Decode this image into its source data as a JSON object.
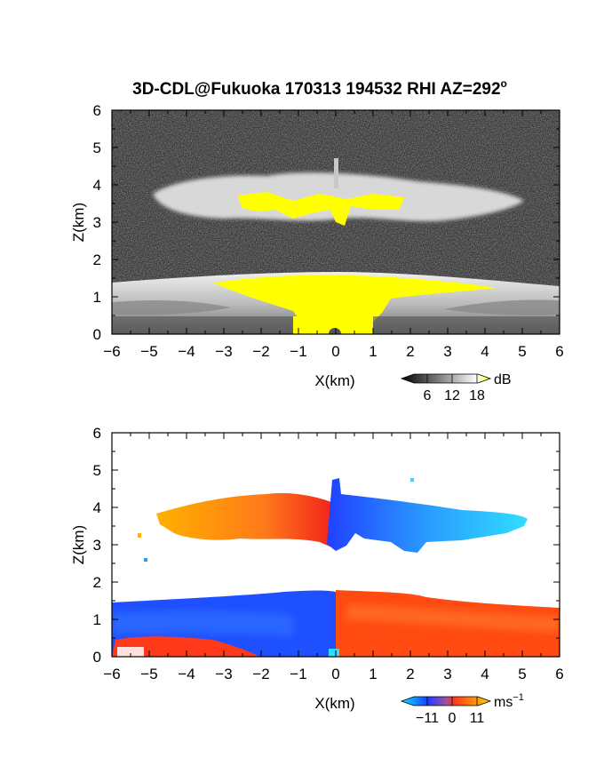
{
  "title": "3D-CDL@Fukuoka 170313 194532 RHI AZ=292",
  "title_superscript": "o",
  "chart_data": [
    {
      "type": "heatmap",
      "quantity": "reflectivity",
      "xlabel": "X(km)",
      "ylabel": "Z(km)",
      "xlim": [
        -6,
        6
      ],
      "ylim": [
        0,
        6
      ],
      "xticks": [
        -6,
        -5,
        -4,
        -3,
        -2,
        -1,
        0,
        1,
        2,
        3,
        4,
        5,
        6
      ],
      "yticks": [
        0,
        1,
        2,
        3,
        4,
        5,
        6
      ],
      "colorbar": {
        "unit": "dB",
        "ticks": [
          6,
          12,
          18
        ],
        "colors": [
          "#000000",
          "#ffffff",
          "#ffff00"
        ],
        "extend": "both"
      },
      "features": [
        {
          "name": "cloud layer",
          "x_range": [
            -4.9,
            4.9
          ],
          "z_range": [
            2.9,
            4.3
          ],
          "max_value": 18
        },
        {
          "name": "boundary layer",
          "x_range": [
            -6,
            6
          ],
          "z_range": [
            0,
            1.5
          ],
          "max_value": 18
        }
      ]
    },
    {
      "type": "heatmap",
      "quantity": "doppler velocity",
      "xlabel": "X(km)",
      "ylabel": "Z(km)",
      "xlim": [
        -6,
        6
      ],
      "ylim": [
        0,
        6
      ],
      "xticks": [
        -6,
        -5,
        -4,
        -3,
        -2,
        -1,
        0,
        1,
        2,
        3,
        4,
        5,
        6
      ],
      "yticks": [
        0,
        1,
        2,
        3,
        4,
        5,
        6
      ],
      "colorbar": {
        "unit": "ms",
        "unit_superscript": "−1",
        "ticks": [
          -11,
          0,
          11
        ],
        "tick_labels": [
          "−11",
          "0",
          "11"
        ],
        "colors": [
          "#00e5ff",
          "#1e3cff",
          "#ff3a1a",
          "#ffd400"
        ],
        "extend": "both"
      },
      "features": [
        {
          "name": "cloud layer left",
          "x_range": [
            -4.8,
            0
          ],
          "z_range": [
            3.0,
            4.0
          ],
          "velocity": 8
        },
        {
          "name": "cloud layer right",
          "x_range": [
            0,
            5.1
          ],
          "z_range": [
            3.0,
            4.8
          ],
          "velocity": -8
        },
        {
          "name": "boundary layer left",
          "x_range": [
            -6,
            0
          ],
          "z_range": [
            0,
            1.6
          ],
          "velocity": -8
        },
        {
          "name": "boundary layer right",
          "x_range": [
            0,
            6
          ],
          "z_range": [
            0,
            1.7
          ],
          "velocity": 6
        }
      ]
    }
  ]
}
